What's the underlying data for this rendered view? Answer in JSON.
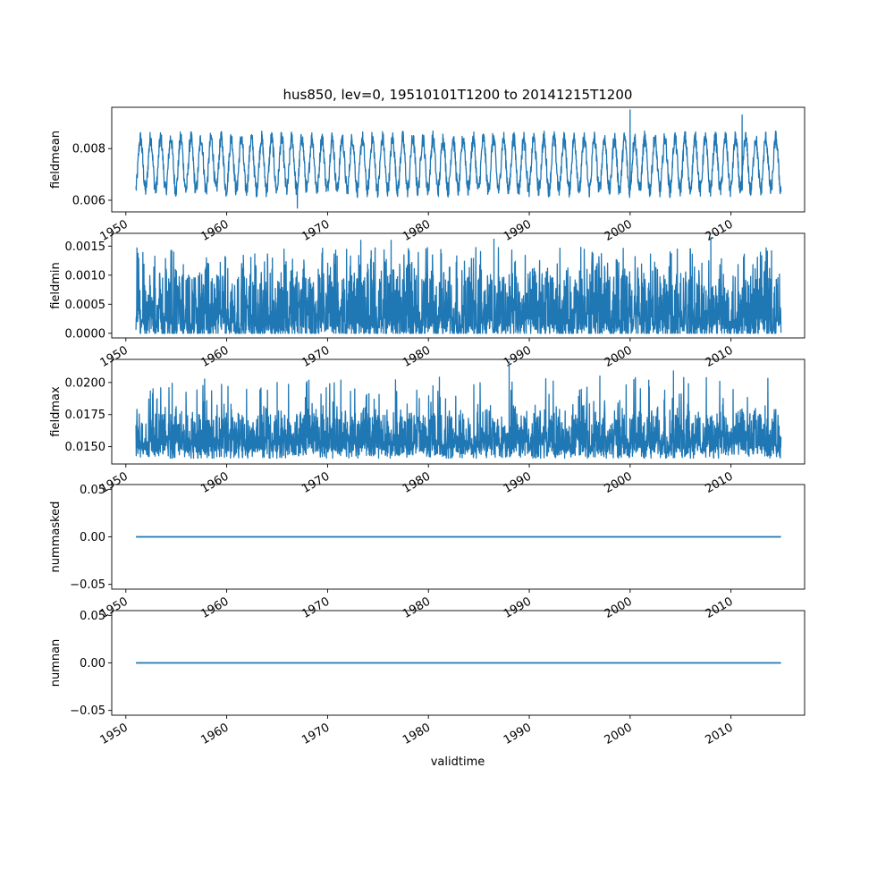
{
  "title": "hus850, lev=0, 19510101T1200 to 20141215T1200",
  "xlabel": "validtime",
  "x_ticks": [
    "1950",
    "1960",
    "1970",
    "1980",
    "1990",
    "2000",
    "2010"
  ],
  "line_color": "#1f77b4",
  "chart_data": [
    {
      "type": "line",
      "ylabel": "fieldmean",
      "x_range": [
        1951.0,
        2014.96
      ],
      "ylim": [
        0.00555,
        0.0096
      ],
      "y_ticks": [
        "0.006",
        "0.008"
      ],
      "y_tick_values": [
        0.006,
        0.008
      ],
      "pattern": {
        "kind": "seasonal",
        "low": 0.0064,
        "high": 0.0084,
        "noise": 0.0003,
        "min": 0.0057,
        "max": 0.0095,
        "spikes": [
          {
            "x": 2000.0,
            "y": 0.0095
          },
          {
            "x": 2011.1,
            "y": 0.0093
          },
          {
            "x": 1967.0,
            "y": 0.0057
          }
        ]
      }
    },
    {
      "type": "line",
      "ylabel": "fieldmin",
      "x_range": [
        1951.0,
        2014.96
      ],
      "ylim": [
        -8e-05,
        0.00172
      ],
      "y_ticks": [
        "0.0000",
        "0.0005",
        "0.0010",
        "0.0015"
      ],
      "y_tick_values": [
        0.0,
        0.0005,
        0.001,
        0.0015
      ],
      "pattern": {
        "kind": "noisy",
        "low": 2e-05,
        "high": 0.0011,
        "noise": 0.0003,
        "min": 0.0,
        "max": 0.00165,
        "spikes": [
          {
            "x": 2008.0,
            "y": 0.00165
          },
          {
            "x": 1973.3,
            "y": 0.0016
          },
          {
            "x": 1976.3,
            "y": 0.0016
          },
          {
            "x": 1986.5,
            "y": 0.00162
          }
        ]
      }
    },
    {
      "type": "line",
      "ylabel": "fieldmax",
      "x_range": [
        1951.0,
        2014.96
      ],
      "ylim": [
        0.01365,
        0.0218
      ],
      "y_ticks": [
        "0.0150",
        "0.0175",
        "0.0200"
      ],
      "y_tick_values": [
        0.015,
        0.0175,
        0.02
      ],
      "pattern": {
        "kind": "noisy",
        "low": 0.0146,
        "high": 0.0178,
        "noise": 0.0012,
        "min": 0.0141,
        "max": 0.0216,
        "spikes": [
          {
            "x": 1988.0,
            "y": 0.0216
          },
          {
            "x": 2004.3,
            "y": 0.0209
          },
          {
            "x": 1965.0,
            "y": 0.02
          },
          {
            "x": 1997.0,
            "y": 0.0205
          }
        ]
      }
    },
    {
      "type": "line",
      "ylabel": "nummasked",
      "x_range": [
        1951.0,
        2014.96
      ],
      "ylim": [
        -0.055,
        0.055
      ],
      "y_ticks": [
        "−0.05",
        "0.00",
        "0.05"
      ],
      "y_tick_values": [
        -0.05,
        0.0,
        0.05
      ],
      "values_constant": 0.0
    },
    {
      "type": "line",
      "ylabel": "numnan",
      "x_range": [
        1951.0,
        2014.96
      ],
      "ylim": [
        -0.055,
        0.055
      ],
      "y_ticks": [
        "−0.05",
        "0.00",
        "0.05"
      ],
      "y_tick_values": [
        -0.05,
        0.0,
        0.05
      ],
      "values_constant": 0.0
    }
  ]
}
